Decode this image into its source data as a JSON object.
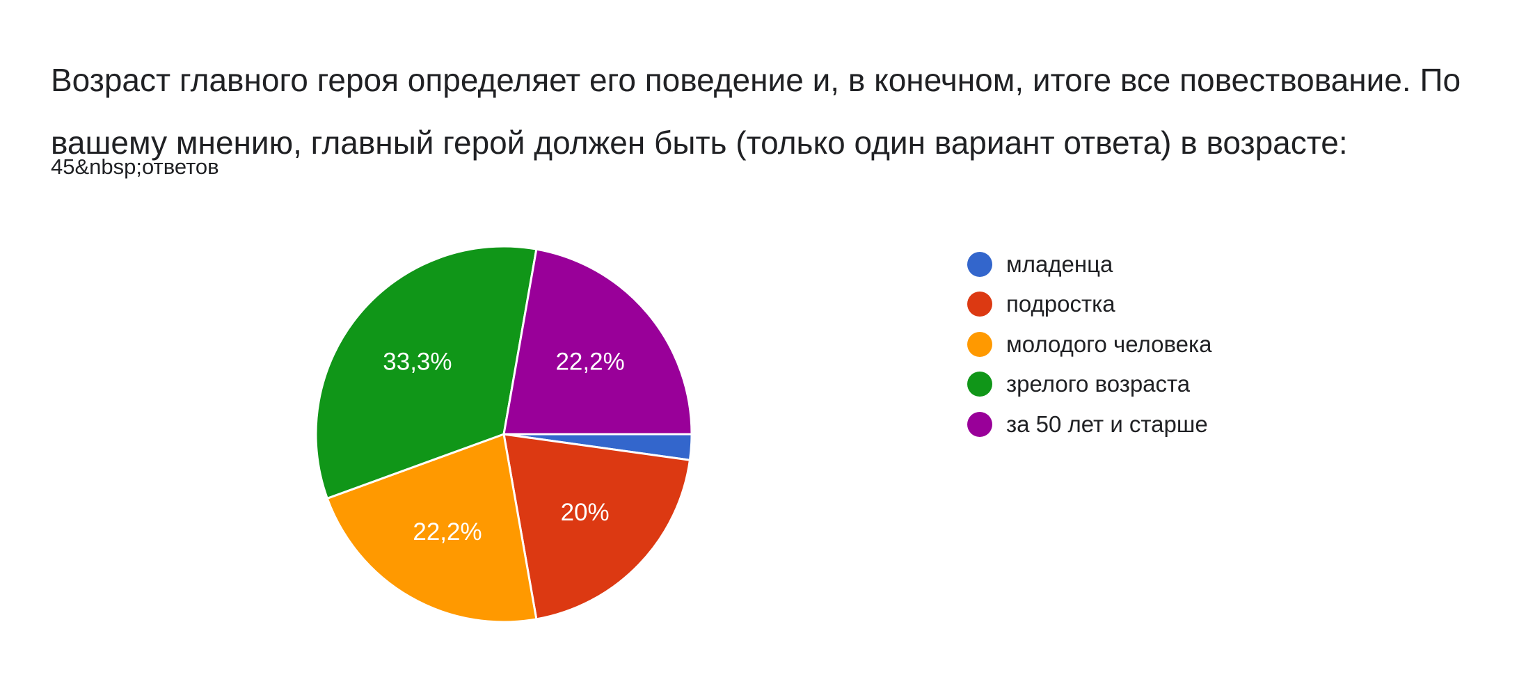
{
  "question": {
    "title": "Возраст главного героя определяет его поведение и, в конечном, итоге все повествование. По вашему мнению, главный герой должен быть (только один вариант ответа) в возрасте:",
    "responses": "45&nbsp;ответов"
  },
  "chart_data": {
    "type": "pie",
    "title": "",
    "legend_position": "right",
    "slices": [
      {
        "name": "младенца",
        "value": 2.2,
        "label": "",
        "color": "#3366cc"
      },
      {
        "name": "подростка",
        "value": 20.0,
        "label": "20%",
        "color": "#dc3912"
      },
      {
        "name": "молодого человека",
        "value": 22.2,
        "label": "22,2%",
        "color": "#ff9900"
      },
      {
        "name": "зрелого возраста",
        "value": 33.3,
        "label": "33,3%",
        "color": "#109618"
      },
      {
        "name": "за 50 лет и старше",
        "value": 22.2,
        "label": "22,2%",
        "color": "#990099"
      }
    ]
  }
}
